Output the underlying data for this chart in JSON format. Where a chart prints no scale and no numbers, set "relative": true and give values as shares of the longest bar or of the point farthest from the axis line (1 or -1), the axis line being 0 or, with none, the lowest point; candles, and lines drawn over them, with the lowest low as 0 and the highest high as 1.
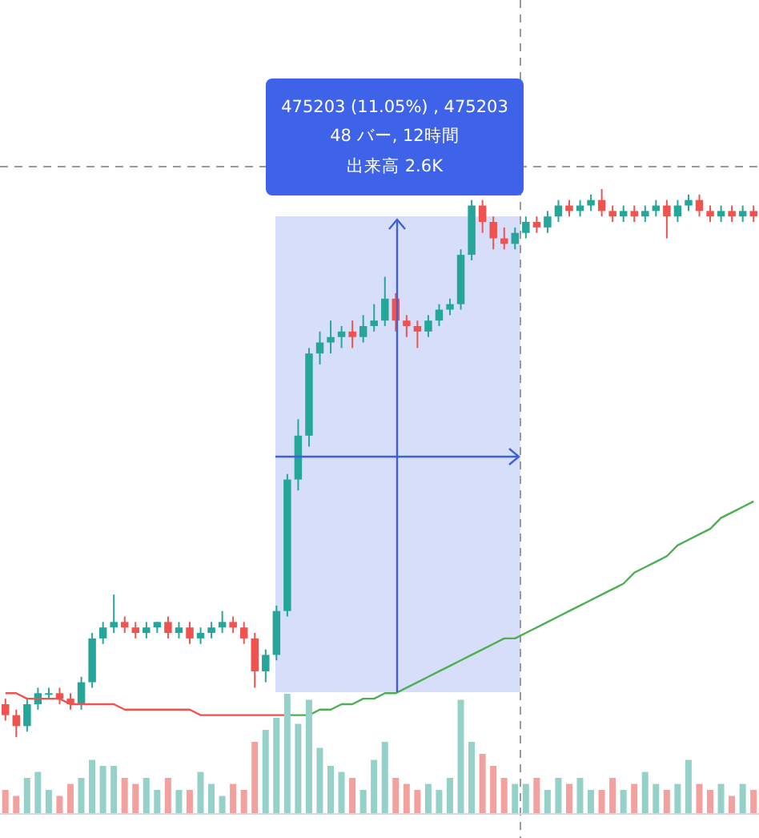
{
  "chart_data": [
    {
      "type": "candlestick",
      "relative": true,
      "legend": false,
      "categories": [
        null,
        null,
        null,
        null,
        null,
        null,
        null,
        null,
        null,
        null,
        null,
        null,
        null,
        null,
        null,
        null,
        null,
        null,
        null,
        null,
        null,
        null,
        null,
        null,
        null,
        null,
        null,
        null,
        null,
        null,
        null,
        null,
        null,
        null,
        null,
        null,
        null,
        null,
        null,
        null,
        null,
        null,
        null,
        null,
        null,
        null,
        null,
        null,
        null,
        null,
        null,
        null,
        null,
        null,
        null,
        null,
        null,
        null,
        null,
        null,
        null,
        null,
        null,
        null,
        null,
        null,
        null,
        null,
        null,
        null
      ],
      "ohlc": [
        [
          0.06,
          0.07,
          0.03,
          0.04
        ],
        [
          0.04,
          0.05,
          0.0,
          0.02
        ],
        [
          0.02,
          0.07,
          0.01,
          0.06
        ],
        [
          0.06,
          0.09,
          0.05,
          0.08
        ],
        [
          0.08,
          0.09,
          0.07,
          0.08
        ],
        [
          0.08,
          0.09,
          0.06,
          0.07
        ],
        [
          0.07,
          0.08,
          0.05,
          0.06
        ],
        [
          0.06,
          0.11,
          0.05,
          0.1
        ],
        [
          0.1,
          0.19,
          0.09,
          0.18
        ],
        [
          0.18,
          0.21,
          0.17,
          0.2
        ],
        [
          0.2,
          0.26,
          0.19,
          0.21
        ],
        [
          0.21,
          0.22,
          0.19,
          0.2
        ],
        [
          0.2,
          0.21,
          0.18,
          0.19
        ],
        [
          0.19,
          0.21,
          0.18,
          0.2
        ],
        [
          0.2,
          0.21,
          0.19,
          0.21
        ],
        [
          0.21,
          0.22,
          0.18,
          0.19
        ],
        [
          0.19,
          0.21,
          0.18,
          0.2
        ],
        [
          0.2,
          0.21,
          0.17,
          0.18
        ],
        [
          0.18,
          0.2,
          0.17,
          0.19
        ],
        [
          0.19,
          0.21,
          0.18,
          0.2
        ],
        [
          0.2,
          0.23,
          0.19,
          0.21
        ],
        [
          0.21,
          0.22,
          0.19,
          0.2
        ],
        [
          0.2,
          0.21,
          0.17,
          0.18
        ],
        [
          0.18,
          0.19,
          0.09,
          0.12
        ],
        [
          0.12,
          0.16,
          0.1,
          0.15
        ],
        [
          0.15,
          0.24,
          0.14,
          0.23
        ],
        [
          0.23,
          0.48,
          0.22,
          0.47
        ],
        [
          0.47,
          0.58,
          0.45,
          0.55
        ],
        [
          0.55,
          0.71,
          0.53,
          0.7
        ],
        [
          0.7,
          0.74,
          0.68,
          0.72
        ],
        [
          0.72,
          0.76,
          0.7,
          0.73
        ],
        [
          0.73,
          0.75,
          0.71,
          0.74
        ],
        [
          0.74,
          0.76,
          0.71,
          0.73
        ],
        [
          0.73,
          0.77,
          0.72,
          0.75
        ],
        [
          0.75,
          0.79,
          0.74,
          0.76
        ],
        [
          0.76,
          0.84,
          0.75,
          0.8
        ],
        [
          0.8,
          0.81,
          0.74,
          0.76
        ],
        [
          0.76,
          0.77,
          0.73,
          0.75
        ],
        [
          0.75,
          0.76,
          0.71,
          0.74
        ],
        [
          0.74,
          0.77,
          0.73,
          0.76
        ],
        [
          0.76,
          0.79,
          0.75,
          0.78
        ],
        [
          0.78,
          0.8,
          0.77,
          0.79
        ],
        [
          0.79,
          0.89,
          0.78,
          0.88
        ],
        [
          0.88,
          0.98,
          0.87,
          0.97
        ],
        [
          0.97,
          0.98,
          0.92,
          0.94
        ],
        [
          0.94,
          0.95,
          0.89,
          0.91
        ],
        [
          0.91,
          0.93,
          0.89,
          0.9
        ],
        [
          0.9,
          0.93,
          0.89,
          0.92
        ],
        [
          0.92,
          0.95,
          0.91,
          0.94
        ],
        [
          0.94,
          0.95,
          0.92,
          0.93
        ],
        [
          0.93,
          0.96,
          0.92,
          0.95
        ],
        [
          0.95,
          0.98,
          0.94,
          0.97
        ],
        [
          0.97,
          0.98,
          0.95,
          0.96
        ],
        [
          0.96,
          0.98,
          0.95,
          0.97
        ],
        [
          0.97,
          0.99,
          0.96,
          0.98
        ],
        [
          0.98,
          1.0,
          0.95,
          0.96
        ],
        [
          0.96,
          0.97,
          0.94,
          0.95
        ],
        [
          0.95,
          0.97,
          0.94,
          0.96
        ],
        [
          0.96,
          0.97,
          0.94,
          0.95
        ],
        [
          0.95,
          0.97,
          0.94,
          0.96
        ],
        [
          0.96,
          0.98,
          0.95,
          0.97
        ],
        [
          0.97,
          0.98,
          0.91,
          0.95
        ],
        [
          0.95,
          0.98,
          0.94,
          0.97
        ],
        [
          0.97,
          0.99,
          0.96,
          0.98
        ],
        [
          0.98,
          0.99,
          0.95,
          0.96
        ],
        [
          0.96,
          0.97,
          0.94,
          0.95
        ],
        [
          0.95,
          0.97,
          0.94,
          0.96
        ],
        [
          0.96,
          0.97,
          0.94,
          0.95
        ],
        [
          0.95,
          0.97,
          0.94,
          0.96
        ],
        [
          0.96,
          0.97,
          0.94,
          0.95
        ]
      ],
      "colors": [
        "#ef5350",
        "#ef5350",
        "#26a69a",
        "#26a69a",
        "#26a69a",
        "#ef5350",
        "#ef5350",
        "#26a69a",
        "#26a69a",
        "#26a69a",
        "#26a69a",
        "#ef5350",
        "#ef5350",
        "#26a69a",
        "#26a69a",
        "#ef5350",
        "#26a69a",
        "#ef5350",
        "#26a69a",
        "#26a69a",
        "#26a69a",
        "#ef5350",
        "#ef5350",
        "#ef5350",
        "#26a69a",
        "#26a69a",
        "#26a69a",
        "#26a69a",
        "#26a69a",
        "#26a69a",
        "#26a69a",
        "#26a69a",
        "#ef5350",
        "#26a69a",
        "#26a69a",
        "#26a69a",
        "#ef5350",
        "#ef5350",
        "#ef5350",
        "#26a69a",
        "#26a69a",
        "#26a69a",
        "#26a69a",
        "#26a69a",
        "#ef5350",
        "#ef5350",
        "#ef5350",
        "#26a69a",
        "#26a69a",
        "#ef5350",
        "#26a69a",
        "#26a69a",
        "#ef5350",
        "#26a69a",
        "#26a69a",
        "#ef5350",
        "#ef5350",
        "#26a69a",
        "#ef5350",
        "#26a69a",
        "#26a69a",
        "#ef5350",
        "#26a69a",
        "#26a69a",
        "#ef5350",
        "#ef5350",
        "#26a69a",
        "#ef5350",
        "#26a69a",
        "#ef5350"
      ],
      "series": [
        {
          "type": "line",
          "color": "#ef5350",
          "values": [
            0.08,
            0.08,
            0.07,
            0.07,
            0.07,
            0.07,
            0.06,
            0.06,
            0.06,
            0.06,
            0.06,
            0.05,
            0.05,
            0.05,
            0.05,
            0.05,
            0.05,
            0.05,
            0.04,
            0.04,
            0.04,
            0.04,
            0.04,
            0.04,
            0.04,
            0.04,
            0.04,
            null,
            null,
            null,
            null,
            null,
            null,
            null,
            null,
            null,
            null,
            null,
            null,
            null,
            null,
            null,
            null,
            null,
            null,
            null,
            null,
            null,
            null,
            null,
            null,
            null,
            null,
            null,
            null,
            null,
            null,
            null,
            null,
            null,
            null,
            null,
            null,
            null,
            null,
            null,
            null,
            null,
            null,
            null
          ]
        },
        {
          "type": "line",
          "color": "#4caf50",
          "values": [
            null,
            null,
            null,
            null,
            null,
            null,
            null,
            null,
            null,
            null,
            null,
            null,
            null,
            null,
            null,
            null,
            null,
            null,
            null,
            null,
            null,
            null,
            null,
            null,
            null,
            null,
            0.04,
            0.04,
            0.04,
            0.05,
            0.05,
            0.06,
            0.06,
            0.07,
            0.07,
            0.08,
            0.08,
            0.09,
            0.1,
            0.11,
            0.12,
            0.13,
            0.14,
            0.15,
            0.16,
            0.17,
            0.18,
            0.18,
            0.19,
            0.2,
            0.21,
            0.22,
            0.23,
            0.24,
            0.25,
            0.26,
            0.27,
            0.28,
            0.3,
            0.31,
            0.32,
            0.33,
            0.35,
            0.36,
            0.37,
            0.38,
            0.4,
            0.41,
            0.42,
            0.43
          ]
        }
      ],
      "annotations": [
        "475203 (11.05%) , 475203",
        "48 バー, 12時間",
        "出来高 2.6K"
      ]
    },
    {
      "type": "bar",
      "relative": true,
      "categories": [
        null,
        null,
        null,
        null,
        null,
        null,
        null,
        null,
        null,
        null,
        null,
        null,
        null,
        null,
        null,
        null,
        null,
        null,
        null,
        null,
        null,
        null,
        null,
        null,
        null,
        null,
        null,
        null,
        null,
        null,
        null,
        null,
        null,
        null,
        null,
        null,
        null,
        null,
        null,
        null,
        null,
        null,
        null,
        null,
        null,
        null,
        null,
        null,
        null,
        null,
        null,
        null,
        null,
        null,
        null,
        null,
        null,
        null,
        null,
        null,
        null,
        null,
        null,
        null,
        null,
        null,
        null,
        null,
        null,
        null
      ],
      "values": [
        0.2,
        0.15,
        0.3,
        0.35,
        0.2,
        0.15,
        0.25,
        0.3,
        0.45,
        0.4,
        0.4,
        0.3,
        0.25,
        0.3,
        0.2,
        0.3,
        0.2,
        0.2,
        0.35,
        0.25,
        0.15,
        0.25,
        0.2,
        0.6,
        0.7,
        0.8,
        1.0,
        0.75,
        0.95,
        0.55,
        0.4,
        0.35,
        0.3,
        0.2,
        0.45,
        0.6,
        0.3,
        0.25,
        0.2,
        0.25,
        0.2,
        0.3,
        0.95,
        0.6,
        0.5,
        0.4,
        0.3,
        0.25,
        0.25,
        0.3,
        0.2,
        0.3,
        0.25,
        0.3,
        0.2,
        0.2,
        0.3,
        0.2,
        0.25,
        0.35,
        0.25,
        0.2,
        0.25,
        0.45,
        0.25,
        0.2,
        0.25,
        0.15,
        0.25,
        0.2
      ],
      "colors": [
        "#f2a19e",
        "#f2a19e",
        "#95d1c9",
        "#95d1c9",
        "#95d1c9",
        "#f2a19e",
        "#f2a19e",
        "#95d1c9",
        "#95d1c9",
        "#95d1c9",
        "#95d1c9",
        "#f2a19e",
        "#f2a19e",
        "#95d1c9",
        "#95d1c9",
        "#f2a19e",
        "#95d1c9",
        "#f2a19e",
        "#95d1c9",
        "#95d1c9",
        "#95d1c9",
        "#f2a19e",
        "#f2a19e",
        "#f2a19e",
        "#95d1c9",
        "#95d1c9",
        "#95d1c9",
        "#95d1c9",
        "#95d1c9",
        "#95d1c9",
        "#95d1c9",
        "#95d1c9",
        "#f2a19e",
        "#95d1c9",
        "#95d1c9",
        "#95d1c9",
        "#f2a19e",
        "#f2a19e",
        "#f2a19e",
        "#95d1c9",
        "#95d1c9",
        "#95d1c9",
        "#95d1c9",
        "#95d1c9",
        "#f2a19e",
        "#f2a19e",
        "#f2a19e",
        "#95d1c9",
        "#95d1c9",
        "#f2a19e",
        "#95d1c9",
        "#95d1c9",
        "#f2a19e",
        "#95d1c9",
        "#95d1c9",
        "#f2a19e",
        "#f2a19e",
        "#95d1c9",
        "#f2a19e",
        "#95d1c9",
        "#95d1c9",
        "#f2a19e",
        "#95d1c9",
        "#95d1c9",
        "#f2a19e",
        "#f2a19e",
        "#95d1c9",
        "#f2a19e",
        "#95d1c9",
        "#f2a19e"
      ]
    }
  ]
}
